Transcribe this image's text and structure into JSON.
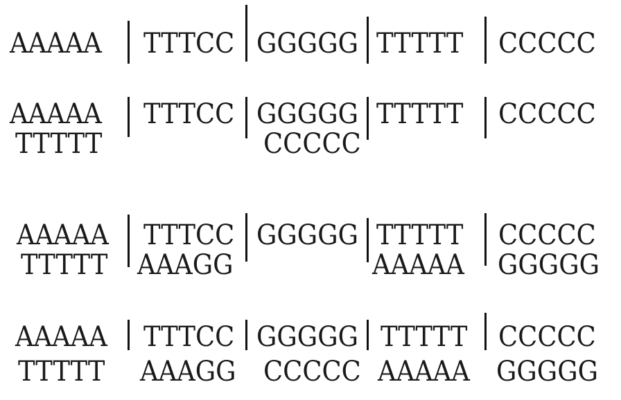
{
  "rows": [
    {
      "top": [
        "AAAAA",
        "TTTCC",
        "GGGGG",
        "TTTTT",
        "CCCCC"
      ],
      "bottom": [
        "",
        "",
        "",
        "",
        ""
      ]
    },
    {
      "top": [
        "AAAAA",
        "TTTCC",
        "GGGGG",
        "TTTTT",
        "CCCCC"
      ],
      "bottom": [
        "TTTTT",
        "",
        "CCCCC",
        "",
        ""
      ]
    },
    {
      "top": [
        "AAAAA",
        "TTTCC",
        "GGGGG",
        "TTTTT",
        "CCCCC"
      ],
      "bottom": [
        "TTTTT",
        "AAAGG",
        "",
        "AAAAA",
        "GGGGG"
      ]
    },
    {
      "top": [
        "AAAAA",
        "TTTCC",
        "GGGGG",
        "TTTTT",
        "CCCCC"
      ],
      "bottom": [
        "TTTTT",
        "AAAGG",
        "CCCCC",
        "AAAAA",
        "GGGGG"
      ]
    }
  ]
}
